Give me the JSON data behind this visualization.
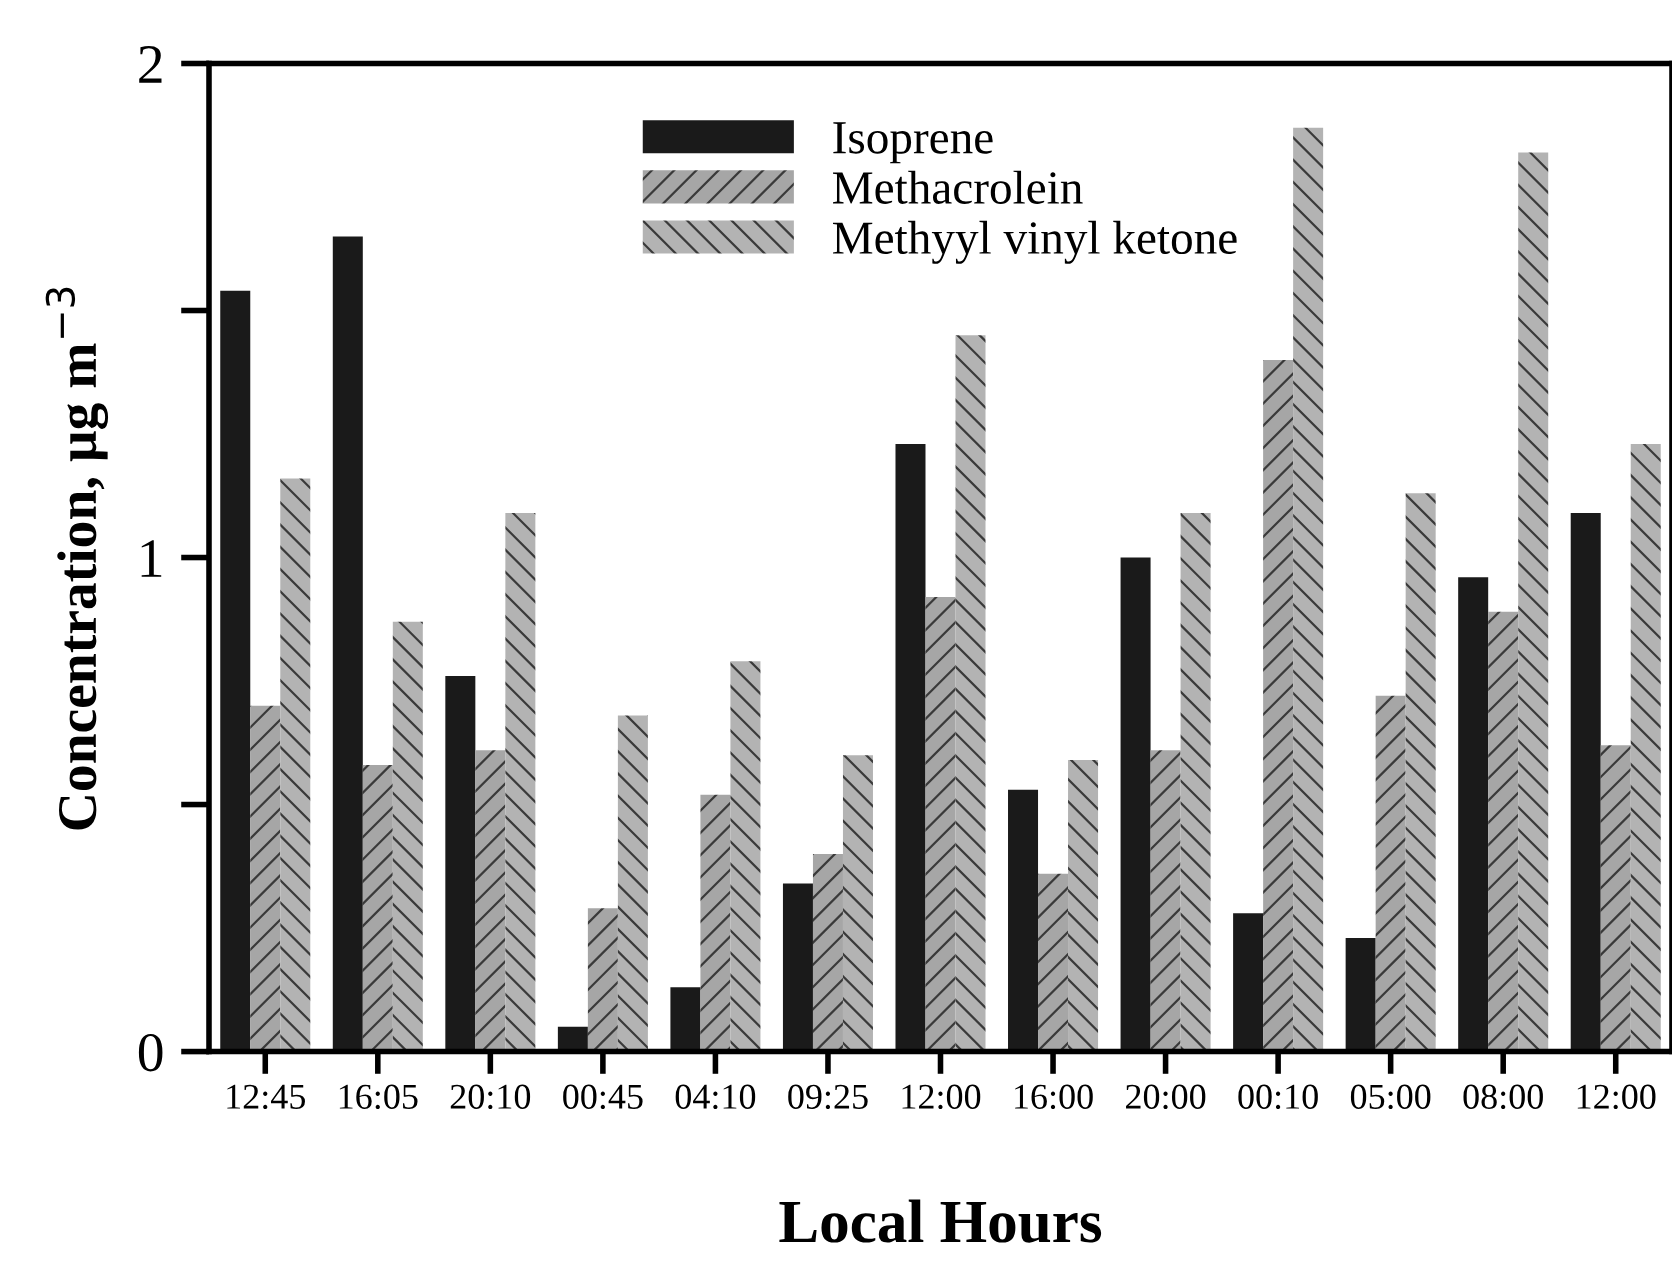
{
  "chart_data": {
    "type": "bar",
    "xlabel": "Local Hours",
    "ylabel": "Concentration, μg m$^{−3}$",
    "categories": [
      "12:45",
      "16:05",
      "20:10",
      "00:45",
      "04:10",
      "09:25",
      "12:00",
      "16:00",
      "20:00",
      "00:10",
      "05:00",
      "08:00",
      "12:00"
    ],
    "series": [
      {
        "name": "Isoprene",
        "color": "#1a1a1a",
        "values": [
          1.54,
          1.65,
          0.76,
          0.05,
          0.13,
          0.34,
          1.23,
          0.53,
          1.0,
          0.28,
          0.23,
          0.96,
          1.09
        ]
      },
      {
        "name": "Methacrolein",
        "color": "#a6a6a6",
        "values": [
          0.7,
          0.58,
          0.61,
          0.29,
          0.52,
          0.4,
          0.92,
          0.36,
          0.61,
          1.4,
          0.72,
          0.89,
          0.62
        ]
      },
      {
        "name": "Methyyl vinyl ketone",
        "color": "#b3b3b3",
        "values": [
          1.16,
          0.87,
          1.09,
          0.68,
          0.79,
          0.6,
          1.45,
          0.59,
          1.09,
          1.87,
          1.13,
          1.82,
          1.23
        ]
      }
    ],
    "ylim": [
      0,
      2
    ],
    "yticks": [
      0,
      {
        "value": 0.5,
        "label": null
      },
      1,
      {
        "value": 1.5,
        "label": null
      },
      2
    ],
    "grid": false,
    "legend": "top"
  }
}
